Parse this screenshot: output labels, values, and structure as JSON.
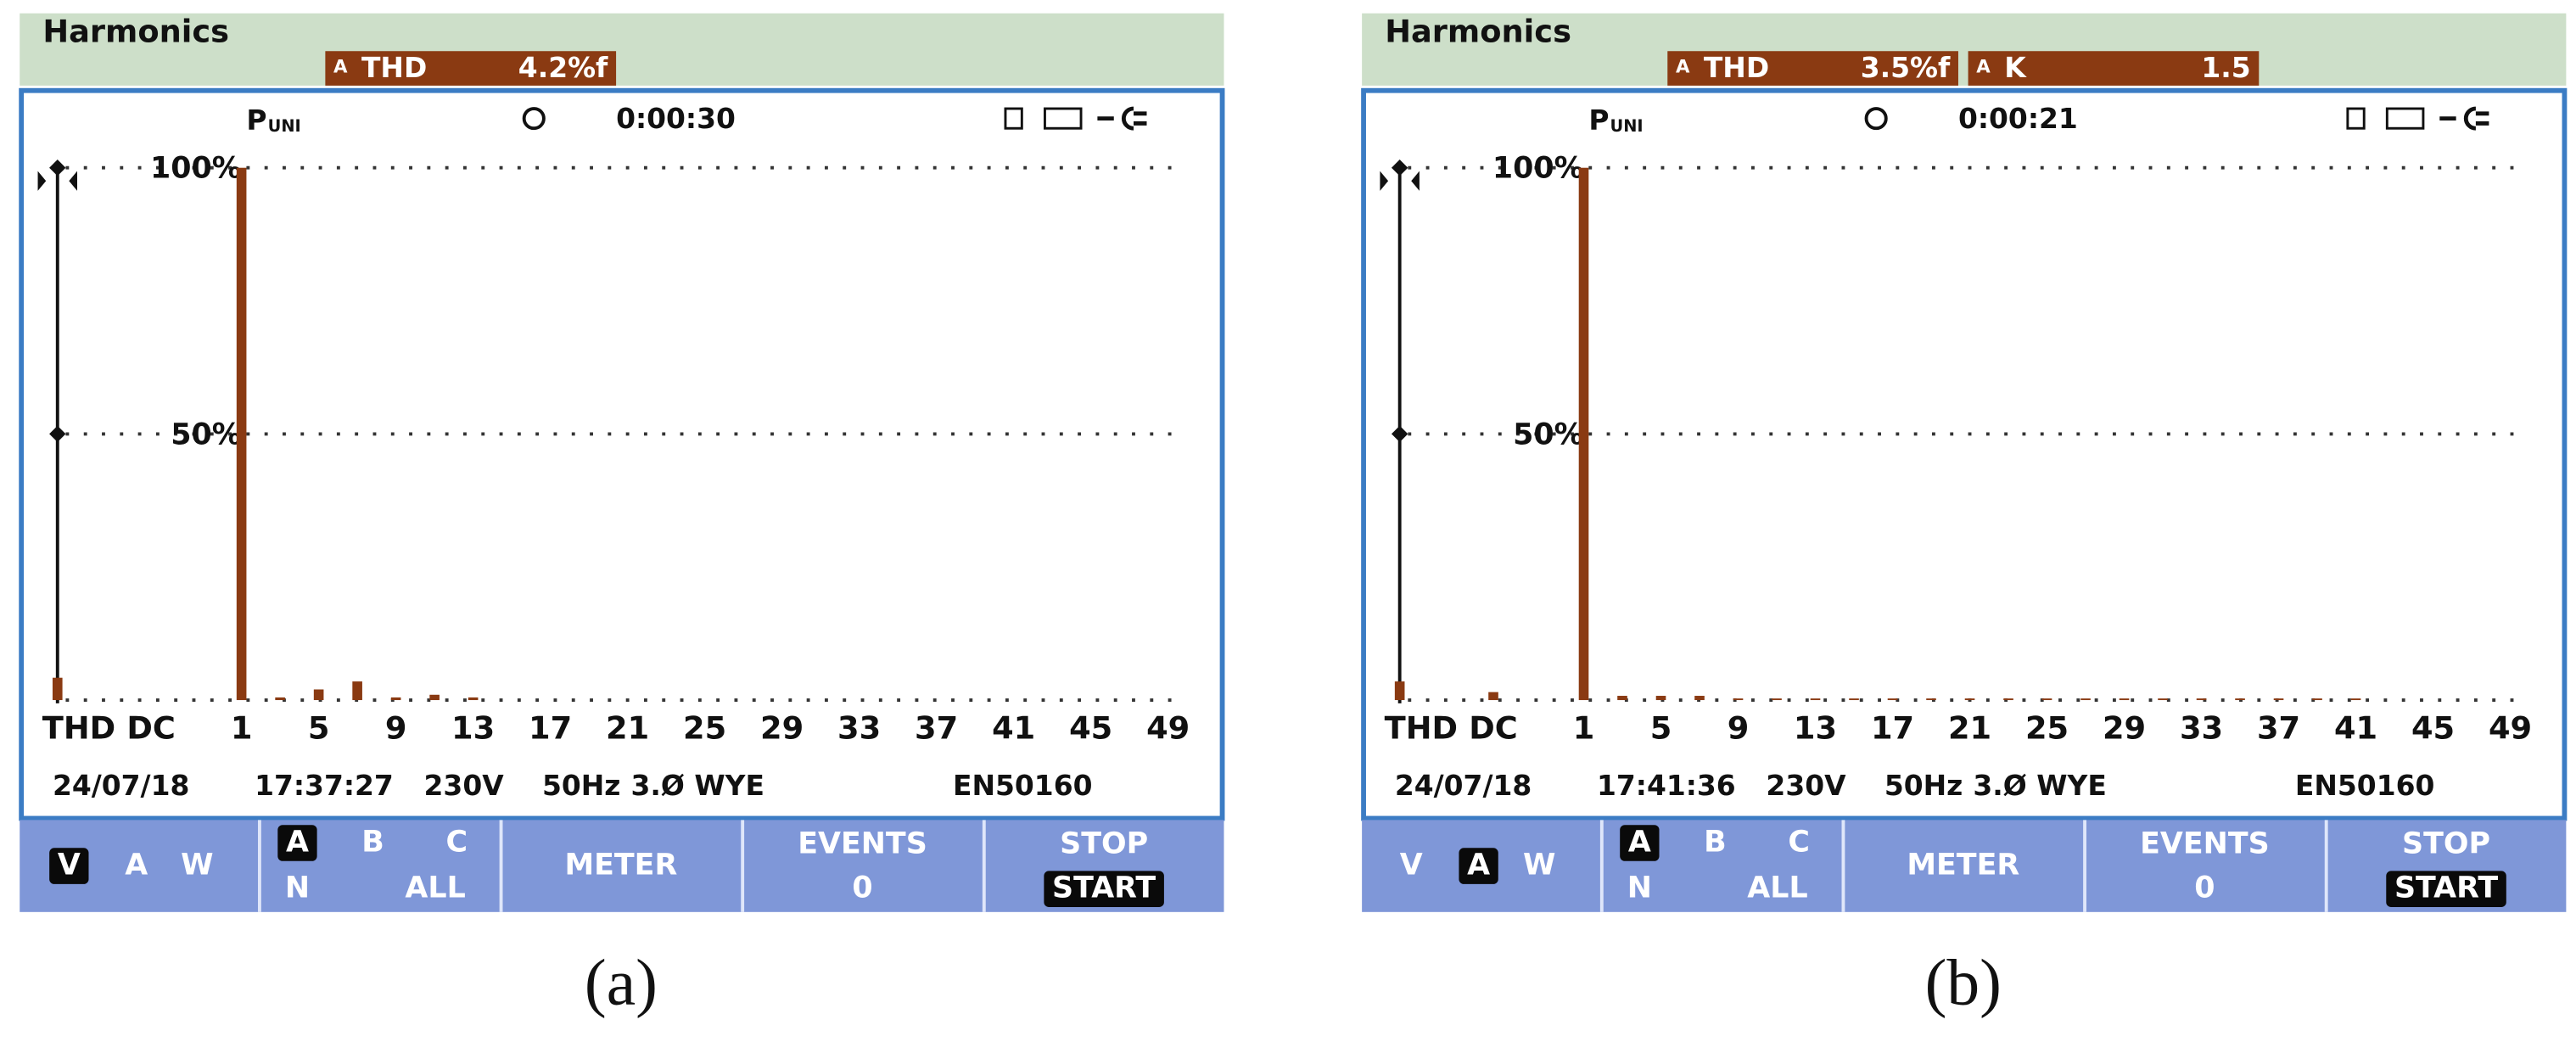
{
  "chart_data": [
    {
      "type": "bar",
      "title": "Harmonics",
      "readouts": [
        {
          "phase": "A",
          "name": "THD",
          "value": "4.2%f"
        }
      ],
      "mode": "P",
      "mode_sub": "UNI",
      "timer": "0:00:30",
      "ylim": [
        0,
        100
      ],
      "yticks": [
        {
          "value": 100,
          "label": "100%"
        },
        {
          "value": 50,
          "label": "50%"
        }
      ],
      "grid": true,
      "color": "#8a3a12",
      "categories": [
        "THD",
        "DC",
        "1",
        null,
        null,
        null,
        "5",
        null,
        null,
        null,
        "9",
        null,
        null,
        null,
        "13",
        null,
        null,
        null,
        "17",
        null,
        null,
        null,
        "21",
        null,
        null,
        null,
        "25",
        null,
        null,
        null,
        "29",
        null,
        null,
        null,
        "33",
        null,
        null,
        null,
        "37",
        null,
        null,
        null,
        "41",
        null,
        null,
        null,
        "45",
        null,
        null,
        null,
        "49"
      ],
      "values": [
        4.2,
        0,
        100,
        0,
        0.5,
        0,
        2,
        0,
        3.5,
        0,
        0.5,
        0,
        1,
        0,
        0.5,
        0,
        0,
        0,
        0,
        0,
        0,
        0,
        0,
        0,
        0,
        0,
        0,
        0,
        0,
        0,
        0,
        0,
        0,
        0,
        0,
        0,
        0,
        0,
        0,
        0,
        0,
        0,
        0,
        0,
        0,
        0,
        0,
        0,
        0,
        0,
        0
      ],
      "status": {
        "date": "24/07/18",
        "time": "17:37:27",
        "voltage": "230V",
        "frequency": "50Hz",
        "wiring": "3.Ø WYE",
        "standard": "EN50160"
      },
      "softkeys": [
        {
          "labels": [
            "V",
            "A",
            "W"
          ],
          "highlight": 0
        },
        {
          "labels": [
            "A",
            "B",
            "C",
            "N",
            "ALL"
          ],
          "highlight": 0
        },
        {
          "labels": [
            "METER"
          ]
        },
        {
          "labels": [
            "EVENTS",
            "0"
          ]
        },
        {
          "labels": [
            "STOP",
            "START"
          ],
          "highlight": 1
        }
      ],
      "caption": "(a)"
    },
    {
      "type": "bar",
      "title": "Harmonics",
      "readouts": [
        {
          "phase": "A",
          "name": "THD",
          "value": "3.5%f"
        },
        {
          "phase": "A",
          "name": "K",
          "value": "1.5"
        }
      ],
      "mode": "P",
      "mode_sub": "UNI",
      "timer": "0:00:21",
      "ylim": [
        0,
        100
      ],
      "yticks": [
        {
          "value": 100,
          "label": "100%"
        },
        {
          "value": 50,
          "label": "50%"
        }
      ],
      "grid": true,
      "color": "#8a3a12",
      "categories": [
        "THD",
        "DC",
        "1",
        null,
        null,
        null,
        "5",
        null,
        null,
        null,
        "9",
        null,
        null,
        null,
        "13",
        null,
        null,
        null,
        "17",
        null,
        null,
        null,
        "21",
        null,
        null,
        null,
        "25",
        null,
        null,
        null,
        "29",
        null,
        null,
        null,
        "33",
        null,
        null,
        null,
        "37",
        null,
        null,
        null,
        "41",
        null,
        null,
        null,
        "45",
        null,
        null,
        null,
        "49"
      ],
      "values": [
        3.5,
        1.5,
        100,
        0,
        0.8,
        0,
        0.8,
        0,
        0.8,
        0,
        0.3,
        0,
        0.3,
        0,
        0.3,
        0,
        0.3,
        0,
        0.3,
        0,
        0.3,
        0,
        0.3,
        0,
        0.3,
        0,
        0.3,
        0,
        0.3,
        0,
        0.3,
        0,
        0.3,
        0,
        0.3,
        0,
        0.3,
        0,
        0.3,
        0,
        0.3,
        0,
        0.3,
        0,
        0,
        0,
        0,
        0,
        0,
        0,
        0
      ],
      "status": {
        "date": "24/07/18",
        "time": "17:41:36",
        "voltage": "230V",
        "frequency": "50Hz",
        "wiring": "3.Ø WYE",
        "standard": "EN50160"
      },
      "softkeys": [
        {
          "labels": [
            "V",
            "A",
            "W"
          ],
          "highlight": 1
        },
        {
          "labels": [
            "A",
            "B",
            "C",
            "N",
            "ALL"
          ],
          "highlight": 0
        },
        {
          "labels": [
            "METER"
          ]
        },
        {
          "labels": [
            "EVENTS",
            "0"
          ]
        },
        {
          "labels": [
            "STOP",
            "START"
          ],
          "highlight": 1
        }
      ],
      "caption": "(b)"
    }
  ]
}
